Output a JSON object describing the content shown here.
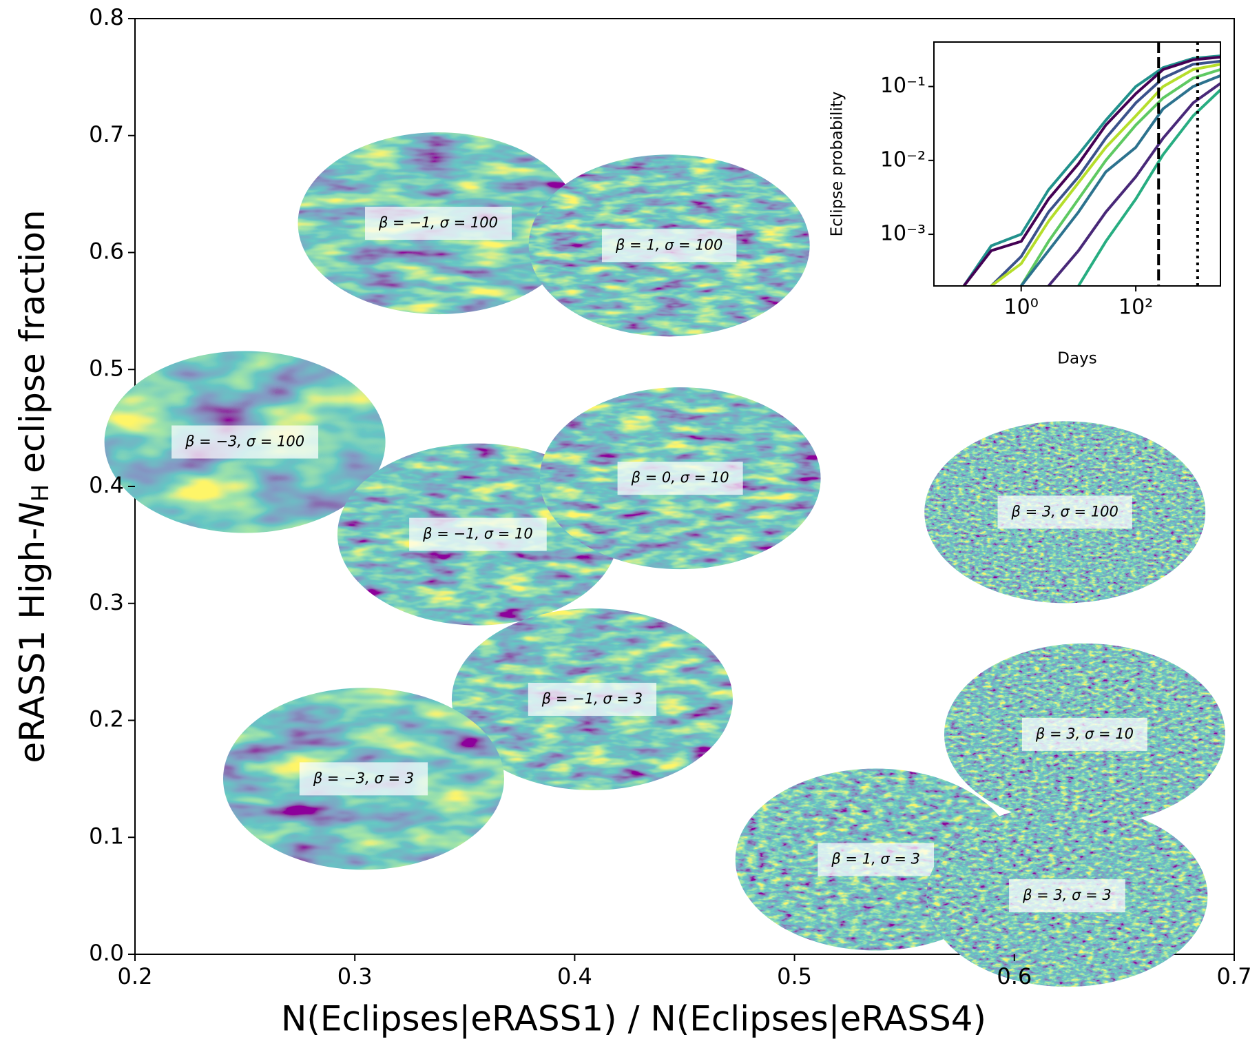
{
  "chart_data": [
    {
      "type": "scatter",
      "xlabel": "N(Eclipses|eRASS1) / N(Eclipses|eRASS4)",
      "ylabel": [
        "eRASS1 High-",
        "N",
        "H",
        " eclipse fraction"
      ],
      "xlim": [
        0.2,
        0.7
      ],
      "ylim": [
        0,
        0.8
      ],
      "xticks": [
        0.2,
        0.3,
        0.4,
        0.5,
        0.6,
        0.7
      ],
      "yticks": [
        {
          "value": 0,
          "label": "0.0"
        },
        0.1,
        0.2,
        0.3,
        0.4,
        0.5,
        0.6,
        0.7,
        0.8
      ],
      "grid": false,
      "points": [
        {
          "label": "β = −1, σ = 100",
          "x": 0.338,
          "y": 0.625
        },
        {
          "label": "β = 1, σ = 100",
          "x": 0.443,
          "y": 0.606
        },
        {
          "label": "β = −3, σ = 100",
          "x": 0.25,
          "y": 0.438
        },
        {
          "label": "β = −1, σ = 10",
          "x": 0.356,
          "y": 0.359
        },
        {
          "label": "β = 0, σ = 10",
          "x": 0.448,
          "y": 0.407
        },
        {
          "label": "β = 3, σ = 100",
          "x": 0.623,
          "y": 0.378
        },
        {
          "label": "β = −1, σ = 3",
          "x": 0.408,
          "y": 0.218
        },
        {
          "label": "β = −3, σ = 3",
          "x": 0.304,
          "y": 0.15
        },
        {
          "label": "β = 3, σ = 10",
          "x": 0.632,
          "y": 0.188
        },
        {
          "label": "β = 1, σ = 3",
          "x": 0.537,
          "y": 0.081
        },
        {
          "label": "β = 3, σ = 3",
          "x": 0.624,
          "y": 0.05
        }
      ]
    },
    {
      "type": "line",
      "xlabel": "Days",
      "ylabel": "Eclipse probability",
      "xscale": "log",
      "yscale": "log",
      "xlim": [
        0.03,
        3000
      ],
      "ylim": [
        0.0002,
        0.4
      ],
      "xticks": [
        {
          "value": 1,
          "label": "10⁰"
        },
        {
          "value": 100,
          "label": "10²"
        }
      ],
      "yticks": [
        {
          "value": 0.1,
          "label": "10⁻¹"
        },
        {
          "value": 0.01,
          "label": "10⁻²"
        },
        {
          "value": 0.001,
          "label": "10⁻³"
        }
      ],
      "vlines": [
        {
          "x": 250,
          "style": "dashed"
        },
        {
          "x": 1200,
          "style": "dotted"
        }
      ],
      "x": [
        0.1,
        0.3,
        1,
        3,
        10,
        30,
        100,
        300,
        1000,
        3000
      ],
      "series": [
        {
          "color": "#21918c",
          "values": [
            0.0002,
            0.0007,
            0.001,
            0.004,
            0.012,
            0.035,
            0.1,
            0.18,
            0.24,
            0.26
          ]
        },
        {
          "color": "#440154",
          "values": [
            0.0002,
            0.0006,
            0.0008,
            0.003,
            0.009,
            0.03,
            0.08,
            0.17,
            0.23,
            0.25
          ]
        },
        {
          "color": "#3b528b",
          "values": [
            null,
            0.0002,
            0.0005,
            0.002,
            0.006,
            0.02,
            0.06,
            0.13,
            0.2,
            0.22
          ]
        },
        {
          "color": "#b5de2b",
          "values": [
            null,
            0.0002,
            0.0004,
            0.0015,
            0.005,
            0.015,
            0.04,
            0.1,
            0.17,
            0.2
          ]
        },
        {
          "color": "#5ec962",
          "values": [
            null,
            null,
            0.0002,
            0.0008,
            0.003,
            0.01,
            0.03,
            0.07,
            0.13,
            0.17
          ]
        },
        {
          "color": "#2c728e",
          "values": [
            null,
            null,
            0.0002,
            0.0006,
            0.002,
            0.007,
            0.015,
            0.05,
            0.1,
            0.14
          ]
        },
        {
          "color": "#482878",
          "values": [
            null,
            null,
            null,
            0.0002,
            0.0006,
            0.002,
            0.006,
            0.02,
            0.06,
            0.11
          ]
        },
        {
          "color": "#27ad81",
          "values": [
            null,
            null,
            null,
            null,
            0.0002,
            0.0008,
            0.003,
            0.012,
            0.04,
            0.09
          ]
        }
      ]
    }
  ]
}
